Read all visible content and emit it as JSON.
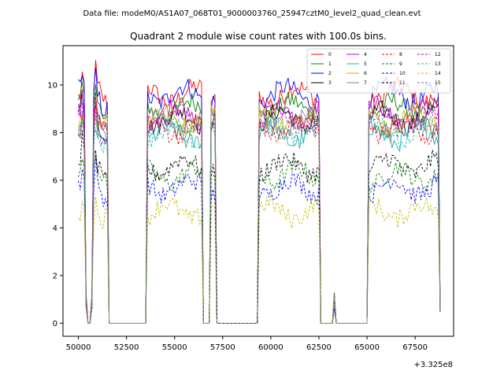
{
  "suptitle": "Data file: modeM0/AS1A07_068T01_9000003760_25947cztM0_level2_quad_clean.evt",
  "chart_data": {
    "type": "line",
    "title": "Quadrant 2 module wise count rates with 100.0s bins.",
    "xlabel": "",
    "ylabel": "",
    "x_offset_label": "+3.325e8",
    "xlim": [
      49200,
      69500
    ],
    "ylim": [
      -0.55,
      11.65
    ],
    "x_ticks": [
      50000,
      52500,
      55000,
      57500,
      60000,
      62500,
      65000,
      67500
    ],
    "x_tick_labels": [
      "50000",
      "52500",
      "55000",
      "57500",
      "60000",
      "62500",
      "65000",
      "67500"
    ],
    "y_ticks": [
      0,
      2,
      4,
      6,
      8,
      10
    ],
    "y_tick_labels": [
      "0",
      "2",
      "4",
      "6",
      "8",
      "10"
    ],
    "grid": false,
    "legend_position": "top-right",
    "segments": [
      {
        "start": 50000,
        "end": 50300
      },
      {
        "start": 50800,
        "end": 51500
      },
      {
        "start": 53600,
        "end": 56400
      },
      {
        "start": 56900,
        "end": 57100
      },
      {
        "start": 59400,
        "end": 62500
      },
      {
        "start": 65100,
        "end": 68800
      }
    ],
    "drop_points": [
      {
        "x": 50400,
        "v": 1.0
      },
      {
        "x": 50500,
        "v": 0.0
      },
      {
        "x": 50600,
        "v": 0.0
      },
      {
        "x": 50700,
        "v": 1.0
      },
      {
        "x": 51600,
        "v": 0.0
      },
      {
        "x": 56500,
        "v": 0.0
      },
      {
        "x": 56600,
        "v": 0.0
      },
      {
        "x": 57300,
        "v": 0.0
      },
      {
        "x": 62700,
        "v": 0.0
      },
      {
        "x": 63100,
        "v": 0.0
      },
      {
        "x": 63300,
        "v": 1.0
      },
      {
        "x": 63400,
        "v": 0.0
      },
      {
        "x": 64800,
        "v": 0.0
      }
    ],
    "series": [
      {
        "name": "0",
        "color": "#ff0000",
        "style": "solid",
        "level": 9.6
      },
      {
        "name": "1",
        "color": "#008000",
        "style": "solid",
        "level": 9.0
      },
      {
        "name": "2",
        "color": "#0000ff",
        "style": "solid",
        "level": 9.6
      },
      {
        "name": "3",
        "color": "#000000",
        "style": "solid",
        "level": 8.6
      },
      {
        "name": "4",
        "color": "#bf00bf",
        "style": "solid",
        "level": 8.8
      },
      {
        "name": "5",
        "color": "#20b2aa",
        "style": "solid",
        "level": 7.9
      },
      {
        "name": "6",
        "color": "#bfbf00",
        "style": "solid",
        "level": 8.6
      },
      {
        "name": "7",
        "color": "#808080",
        "style": "solid",
        "level": 8.4
      },
      {
        "name": "8",
        "color": "#ff0000",
        "style": "dashed",
        "level": 8.2
      },
      {
        "name": "9",
        "color": "#008000",
        "style": "dashed",
        "level": 6.2
      },
      {
        "name": "10",
        "color": "#0000ff",
        "style": "dashed",
        "level": 5.7
      },
      {
        "name": "11",
        "color": "#000000",
        "style": "dashed",
        "level": 6.6
      },
      {
        "name": "12",
        "color": "#bf00bf",
        "style": "dashed",
        "level": 8.5
      },
      {
        "name": "13",
        "color": "#20b2aa",
        "style": "dashed",
        "level": 8.0
      },
      {
        "name": "14",
        "color": "#bfbf00",
        "style": "dashed",
        "level": 4.7
      },
      {
        "name": "15",
        "color": "#808080",
        "style": "dashed",
        "level": 8.3
      }
    ]
  }
}
